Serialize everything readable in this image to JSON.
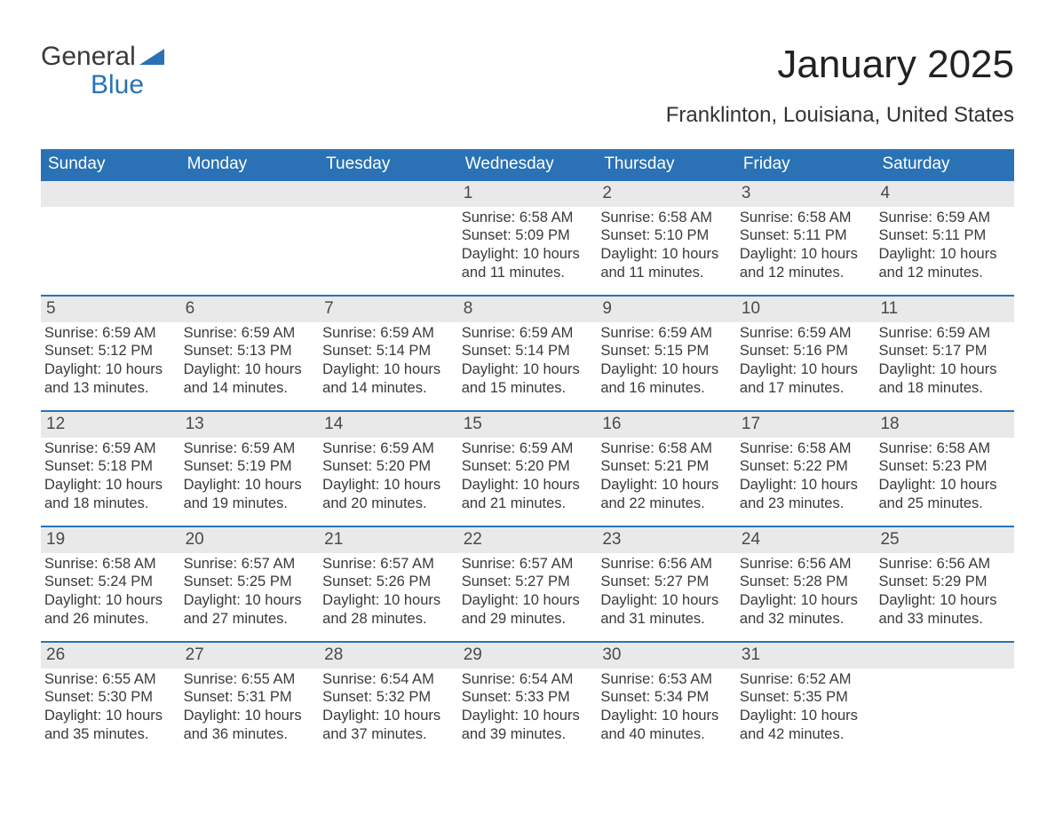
{
  "brand": {
    "word1": "General",
    "word2": "Blue"
  },
  "title": "January 2025",
  "location": "Franklinton, Louisiana, United States",
  "colors": {
    "header_bg": "#2a72b5",
    "header_text": "#ffffff",
    "daybar_bg": "#e9e9e9",
    "rule": "#2a72b5",
    "text": "#3a3a3a",
    "background": "#ffffff"
  },
  "weekdays": [
    "Sunday",
    "Monday",
    "Tuesday",
    "Wednesday",
    "Thursday",
    "Friday",
    "Saturday"
  ],
  "weeks": [
    [
      {
        "empty": true
      },
      {
        "empty": true
      },
      {
        "empty": true
      },
      {
        "day": "1",
        "sunrise": "Sunrise: 6:58 AM",
        "sunset": "Sunset: 5:09 PM",
        "daylight": "Daylight: 10 hours and 11 minutes."
      },
      {
        "day": "2",
        "sunrise": "Sunrise: 6:58 AM",
        "sunset": "Sunset: 5:10 PM",
        "daylight": "Daylight: 10 hours and 11 minutes."
      },
      {
        "day": "3",
        "sunrise": "Sunrise: 6:58 AM",
        "sunset": "Sunset: 5:11 PM",
        "daylight": "Daylight: 10 hours and 12 minutes."
      },
      {
        "day": "4",
        "sunrise": "Sunrise: 6:59 AM",
        "sunset": "Sunset: 5:11 PM",
        "daylight": "Daylight: 10 hours and 12 minutes."
      }
    ],
    [
      {
        "day": "5",
        "sunrise": "Sunrise: 6:59 AM",
        "sunset": "Sunset: 5:12 PM",
        "daylight": "Daylight: 10 hours and 13 minutes."
      },
      {
        "day": "6",
        "sunrise": "Sunrise: 6:59 AM",
        "sunset": "Sunset: 5:13 PM",
        "daylight": "Daylight: 10 hours and 14 minutes."
      },
      {
        "day": "7",
        "sunrise": "Sunrise: 6:59 AM",
        "sunset": "Sunset: 5:14 PM",
        "daylight": "Daylight: 10 hours and 14 minutes."
      },
      {
        "day": "8",
        "sunrise": "Sunrise: 6:59 AM",
        "sunset": "Sunset: 5:14 PM",
        "daylight": "Daylight: 10 hours and 15 minutes."
      },
      {
        "day": "9",
        "sunrise": "Sunrise: 6:59 AM",
        "sunset": "Sunset: 5:15 PM",
        "daylight": "Daylight: 10 hours and 16 minutes."
      },
      {
        "day": "10",
        "sunrise": "Sunrise: 6:59 AM",
        "sunset": "Sunset: 5:16 PM",
        "daylight": "Daylight: 10 hours and 17 minutes."
      },
      {
        "day": "11",
        "sunrise": "Sunrise: 6:59 AM",
        "sunset": "Sunset: 5:17 PM",
        "daylight": "Daylight: 10 hours and 18 minutes."
      }
    ],
    [
      {
        "day": "12",
        "sunrise": "Sunrise: 6:59 AM",
        "sunset": "Sunset: 5:18 PM",
        "daylight": "Daylight: 10 hours and 18 minutes."
      },
      {
        "day": "13",
        "sunrise": "Sunrise: 6:59 AM",
        "sunset": "Sunset: 5:19 PM",
        "daylight": "Daylight: 10 hours and 19 minutes."
      },
      {
        "day": "14",
        "sunrise": "Sunrise: 6:59 AM",
        "sunset": "Sunset: 5:20 PM",
        "daylight": "Daylight: 10 hours and 20 minutes."
      },
      {
        "day": "15",
        "sunrise": "Sunrise: 6:59 AM",
        "sunset": "Sunset: 5:20 PM",
        "daylight": "Daylight: 10 hours and 21 minutes."
      },
      {
        "day": "16",
        "sunrise": "Sunrise: 6:58 AM",
        "sunset": "Sunset: 5:21 PM",
        "daylight": "Daylight: 10 hours and 22 minutes."
      },
      {
        "day": "17",
        "sunrise": "Sunrise: 6:58 AM",
        "sunset": "Sunset: 5:22 PM",
        "daylight": "Daylight: 10 hours and 23 minutes."
      },
      {
        "day": "18",
        "sunrise": "Sunrise: 6:58 AM",
        "sunset": "Sunset: 5:23 PM",
        "daylight": "Daylight: 10 hours and 25 minutes."
      }
    ],
    [
      {
        "day": "19",
        "sunrise": "Sunrise: 6:58 AM",
        "sunset": "Sunset: 5:24 PM",
        "daylight": "Daylight: 10 hours and 26 minutes."
      },
      {
        "day": "20",
        "sunrise": "Sunrise: 6:57 AM",
        "sunset": "Sunset: 5:25 PM",
        "daylight": "Daylight: 10 hours and 27 minutes."
      },
      {
        "day": "21",
        "sunrise": "Sunrise: 6:57 AM",
        "sunset": "Sunset: 5:26 PM",
        "daylight": "Daylight: 10 hours and 28 minutes."
      },
      {
        "day": "22",
        "sunrise": "Sunrise: 6:57 AM",
        "sunset": "Sunset: 5:27 PM",
        "daylight": "Daylight: 10 hours and 29 minutes."
      },
      {
        "day": "23",
        "sunrise": "Sunrise: 6:56 AM",
        "sunset": "Sunset: 5:27 PM",
        "daylight": "Daylight: 10 hours and 31 minutes."
      },
      {
        "day": "24",
        "sunrise": "Sunrise: 6:56 AM",
        "sunset": "Sunset: 5:28 PM",
        "daylight": "Daylight: 10 hours and 32 minutes."
      },
      {
        "day": "25",
        "sunrise": "Sunrise: 6:56 AM",
        "sunset": "Sunset: 5:29 PM",
        "daylight": "Daylight: 10 hours and 33 minutes."
      }
    ],
    [
      {
        "day": "26",
        "sunrise": "Sunrise: 6:55 AM",
        "sunset": "Sunset: 5:30 PM",
        "daylight": "Daylight: 10 hours and 35 minutes."
      },
      {
        "day": "27",
        "sunrise": "Sunrise: 6:55 AM",
        "sunset": "Sunset: 5:31 PM",
        "daylight": "Daylight: 10 hours and 36 minutes."
      },
      {
        "day": "28",
        "sunrise": "Sunrise: 6:54 AM",
        "sunset": "Sunset: 5:32 PM",
        "daylight": "Daylight: 10 hours and 37 minutes."
      },
      {
        "day": "29",
        "sunrise": "Sunrise: 6:54 AM",
        "sunset": "Sunset: 5:33 PM",
        "daylight": "Daylight: 10 hours and 39 minutes."
      },
      {
        "day": "30",
        "sunrise": "Sunrise: 6:53 AM",
        "sunset": "Sunset: 5:34 PM",
        "daylight": "Daylight: 10 hours and 40 minutes."
      },
      {
        "day": "31",
        "sunrise": "Sunrise: 6:52 AM",
        "sunset": "Sunset: 5:35 PM",
        "daylight": "Daylight: 10 hours and 42 minutes."
      },
      {
        "empty": true
      }
    ]
  ]
}
